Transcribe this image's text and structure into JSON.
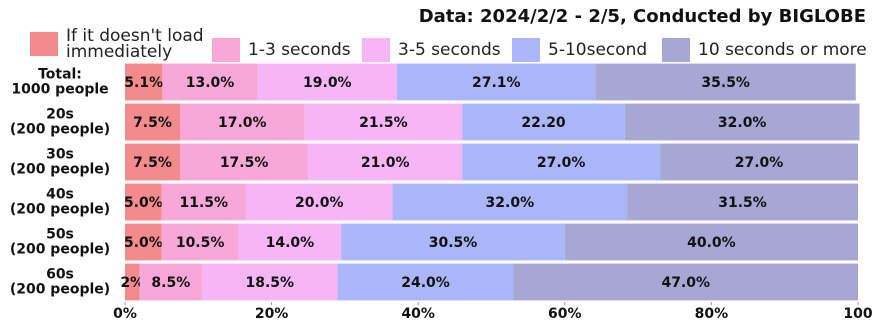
{
  "chart_data": {
    "type": "stacked-barh",
    "title": "Data: 2024/2/2 - 2/5, Conducted by BIGLOBE",
    "categories": [
      [
        "Total:",
        "1000 people"
      ],
      [
        "20s",
        "(200 people)"
      ],
      [
        "30s",
        "(200 people)"
      ],
      [
        "40s",
        "(200 people)"
      ],
      [
        "50s",
        "(200 people)"
      ],
      [
        "60s",
        "(200 people)"
      ]
    ],
    "series": [
      {
        "name": "If it doesn't load immediately",
        "color": "#f38b8c",
        "values": [
          5.1,
          7.5,
          7.5,
          5.0,
          5.0,
          2
        ],
        "value_labels": [
          "5.1%",
          "7.5%",
          "7.5%",
          "5.0%",
          "5.0%",
          "2%"
        ]
      },
      {
        "name": "1-3 seconds",
        "color": "#f8a8d8",
        "values": [
          13.0,
          17.0,
          17.5,
          11.5,
          10.5,
          8.5
        ],
        "value_labels": [
          "13.0%",
          "17.0%",
          "17.5%",
          "11.5%",
          "10.5%",
          "8.5%"
        ]
      },
      {
        "name": "3-5 seconds",
        "color": "#f6b6f6",
        "values": [
          19.0,
          21.5,
          21.0,
          20.0,
          14.0,
          18.5
        ],
        "value_labels": [
          "19.0%",
          "21.5%",
          "21.0%",
          "20.0%",
          "14.0%",
          "18.5%"
        ]
      },
      {
        "name": "5-10second",
        "color": "#aab6f8",
        "values": [
          27.1,
          22.2,
          27.0,
          32.0,
          30.5,
          24.0
        ],
        "value_labels": [
          "27.1%",
          "22.20",
          "27.0%",
          "32.0%",
          "30.5%",
          "24.0%"
        ]
      },
      {
        "name": "10 seconds or more",
        "color": "#a7a7d4",
        "values": [
          35.5,
          32.0,
          27.0,
          31.5,
          40.0,
          47.0
        ],
        "value_labels": [
          "35.5%",
          "32.0%",
          "27.0%",
          "31.5%",
          "40.0%",
          "47.0%"
        ]
      }
    ],
    "xlim": [
      0,
      100
    ],
    "xticks": [
      {
        "value": 0,
        "label": "0%"
      },
      {
        "value": 20,
        "label": "20%"
      },
      {
        "value": 40,
        "label": "40%"
      },
      {
        "value": 60,
        "label": "60%"
      },
      {
        "value": 80,
        "label": "80%"
      },
      {
        "value": 100,
        "label": "100"
      }
    ]
  }
}
